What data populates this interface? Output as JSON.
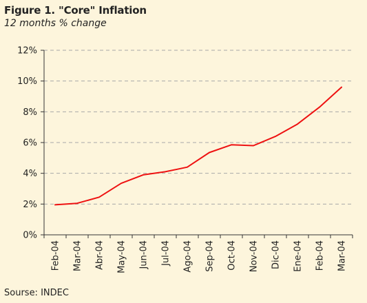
{
  "figure": {
    "title": "Figure 1. \"Core\" Inflation",
    "subtitle": "12 months % change",
    "source": "Sourse: INDEC"
  },
  "chart_data": {
    "type": "line",
    "title": "Figure 1. \"Core\" Inflation",
    "subtitle": "12 months % change",
    "xlabel": "",
    "ylabel": "",
    "categories": [
      "Feb-04",
      "Mar-04",
      "Abr-04",
      "May-04",
      "Jun-04",
      "Jul-04",
      "Ago-04",
      "Sep-04",
      "Oct-04",
      "Nov-04",
      "Dic-04",
      "Ene-04",
      "Feb-04",
      "Mar-04"
    ],
    "series": [
      {
        "values": [
          1.95,
          2.05,
          2.45,
          3.35,
          3.9,
          4.1,
          4.4,
          5.35,
          5.85,
          5.8,
          6.4,
          7.2,
          8.3,
          9.6
        ],
        "color": "#ee1111"
      }
    ],
    "ylim": [
      0,
      12
    ],
    "yticks": [
      0,
      2,
      4,
      6,
      8,
      10,
      12
    ],
    "ytick_labels": [
      "0%",
      "2%",
      "4%",
      "6%",
      "8%",
      "10%",
      "12%"
    ],
    "grid": true,
    "grid_style": "dashed",
    "legend": "none"
  }
}
